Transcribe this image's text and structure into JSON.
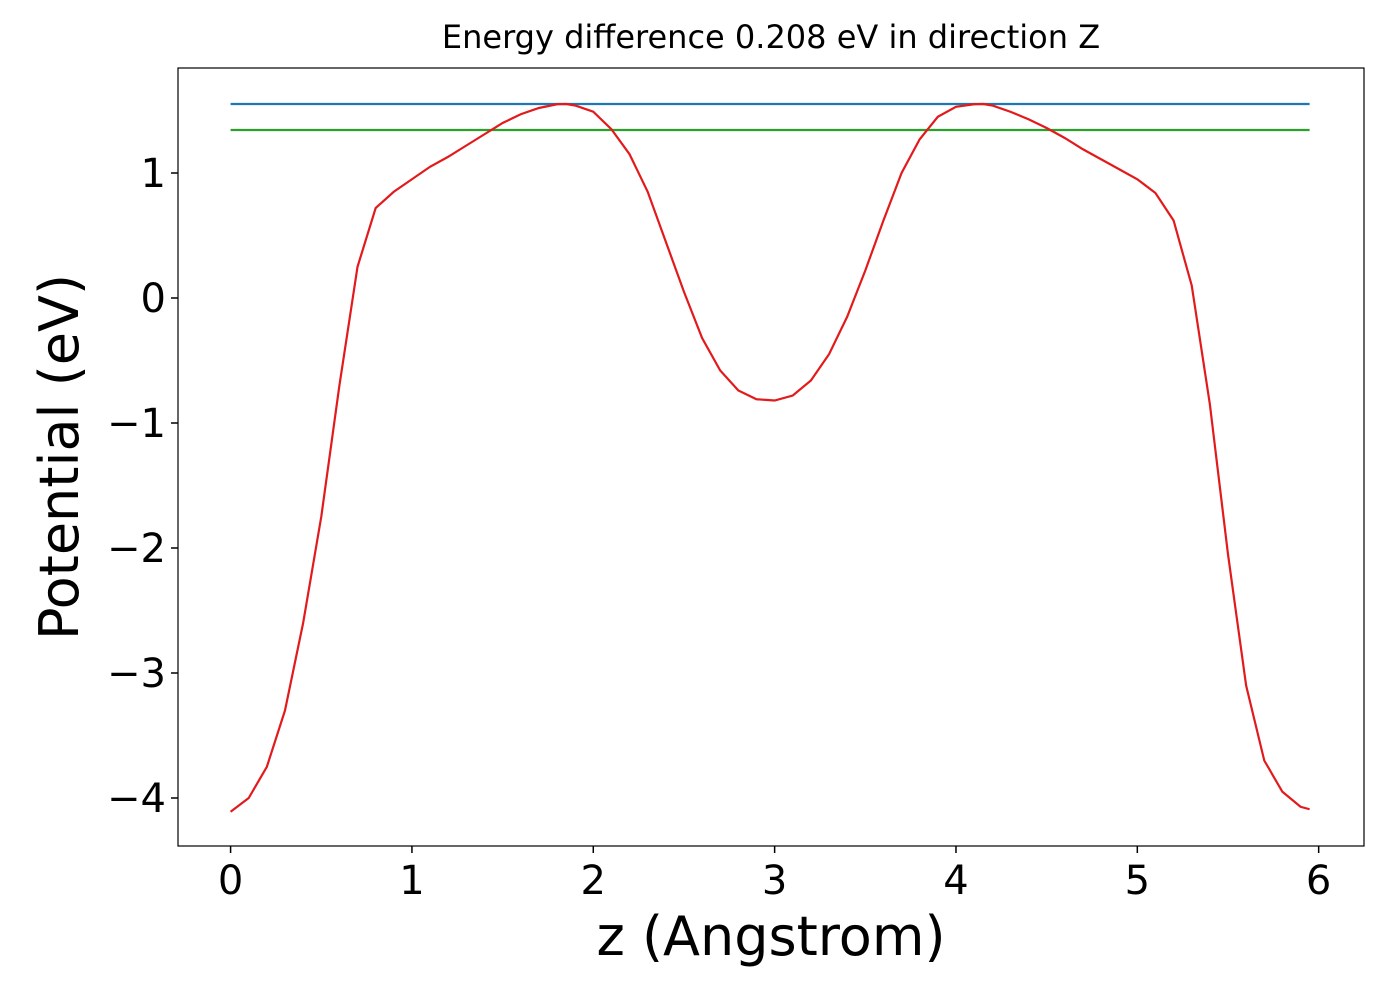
{
  "chart_data": {
    "type": "line",
    "title": "Energy difference 0.208 eV in direction Z",
    "x_label": "z (Angstrom)",
    "y_label": "Potential (eV)",
    "xlim": [
      -0.29,
      6.25
    ],
    "ylim": [
      -4.384,
      1.84
    ],
    "xticks": [
      0,
      1,
      2,
      3,
      4,
      5,
      6
    ],
    "yticks": [
      {
        "value": -4,
        "label": "−4"
      },
      {
        "value": -3,
        "label": "−3"
      },
      {
        "value": -2,
        "label": "−2"
      },
      {
        "value": -1,
        "label": "−1"
      },
      0,
      1
    ],
    "series": [
      {
        "color": "#1f77b4",
        "x": [
          0,
          5.95
        ],
        "values": [
          1.552,
          1.552
        ]
      },
      {
        "color": "#2ca02c",
        "x": [
          0,
          5.95
        ],
        "values": [
          1.344,
          1.344
        ]
      },
      {
        "color": "#e31a1c",
        "x": [
          0,
          0.1,
          0.2,
          0.3,
          0.4,
          0.5,
          0.6,
          0.7,
          0.8,
          0.9,
          1.0,
          1.1,
          1.2,
          1.3,
          1.4,
          1.5,
          1.6,
          1.7,
          1.8,
          1.85,
          1.9,
          2.0,
          2.1,
          2.2,
          2.3,
          2.4,
          2.5,
          2.6,
          2.7,
          2.8,
          2.9,
          3.0,
          3.1,
          3.2,
          3.3,
          3.4,
          3.5,
          3.6,
          3.7,
          3.8,
          3.9,
          4.0,
          4.1,
          4.15,
          4.2,
          4.3,
          4.4,
          4.5,
          4.6,
          4.7,
          4.8,
          4.9,
          5.0,
          5.1,
          5.2,
          5.3,
          5.4,
          5.5,
          5.6,
          5.7,
          5.8,
          5.9,
          5.95
        ],
        "values": [
          -4.11,
          -4.0,
          -3.75,
          -3.3,
          -2.6,
          -1.75,
          -0.7,
          0.25,
          0.72,
          0.85,
          0.95,
          1.05,
          1.13,
          1.22,
          1.31,
          1.4,
          1.47,
          1.52,
          1.55,
          1.552,
          1.54,
          1.49,
          1.35,
          1.15,
          0.85,
          0.45,
          0.05,
          -0.32,
          -0.58,
          -0.74,
          -0.81,
          -0.82,
          -0.78,
          -0.66,
          -0.45,
          -0.15,
          0.22,
          0.62,
          1.0,
          1.27,
          1.45,
          1.53,
          1.55,
          1.552,
          1.54,
          1.49,
          1.43,
          1.36,
          1.28,
          1.19,
          1.11,
          1.03,
          0.95,
          0.84,
          0.62,
          0.1,
          -0.85,
          -2.05,
          -3.1,
          -3.7,
          -3.95,
          -4.07,
          -4.09
        ]
      }
    ]
  }
}
